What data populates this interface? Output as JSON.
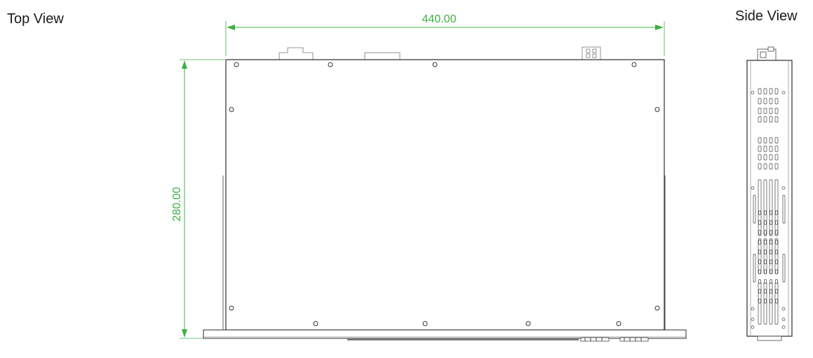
{
  "labels": {
    "top_view": "Top View",
    "side_view": "Side View"
  },
  "dimensions": {
    "width": "440.00",
    "depth": "280.00"
  },
  "colors": {
    "dimension": "#3cb043",
    "outline": "#2b2b2b",
    "detail": "#555555"
  }
}
